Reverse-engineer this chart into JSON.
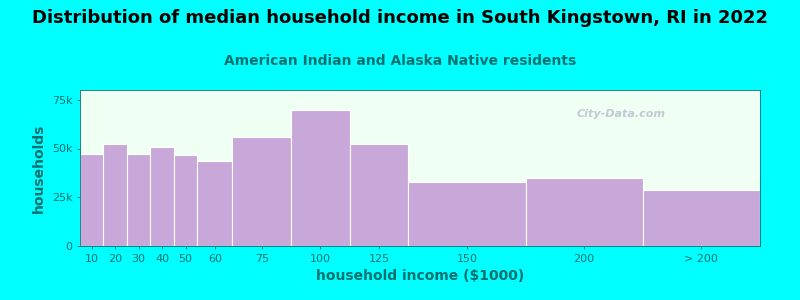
{
  "title": "Distribution of median household income in South Kingstown, RI in 2022",
  "subtitle": "American Indian and Alaska Native residents",
  "xlabel": "household income ($1000)",
  "ylabel": "households",
  "background_color": "#00FFFF",
  "plot_bg_color": "#F0FFF4",
  "bar_color": "#C8A8D8",
  "bar_edge_color": "#FFFFFF",
  "categories": [
    "10",
    "20",
    "30",
    "40",
    "50",
    "60",
    "75",
    "100",
    "125",
    "150",
    "200",
    "> 200"
  ],
  "values": [
    47000,
    52500,
    47000,
    51000,
    46500,
    43500,
    56000,
    69500,
    52500,
    33000,
    35000,
    28500
  ],
  "ylim": [
    0,
    80000
  ],
  "yticks": [
    0,
    25000,
    50000,
    75000
  ],
  "ytick_labels": [
    "0",
    "25k",
    "50k",
    "75k"
  ],
  "title_fontsize": 13,
  "subtitle_fontsize": 10,
  "axis_label_fontsize": 10,
  "tick_fontsize": 8,
  "title_color": "#000000",
  "subtitle_color": "#007070",
  "axis_color": "#007070",
  "tick_color": "#007070",
  "watermark": "City-Data.com"
}
